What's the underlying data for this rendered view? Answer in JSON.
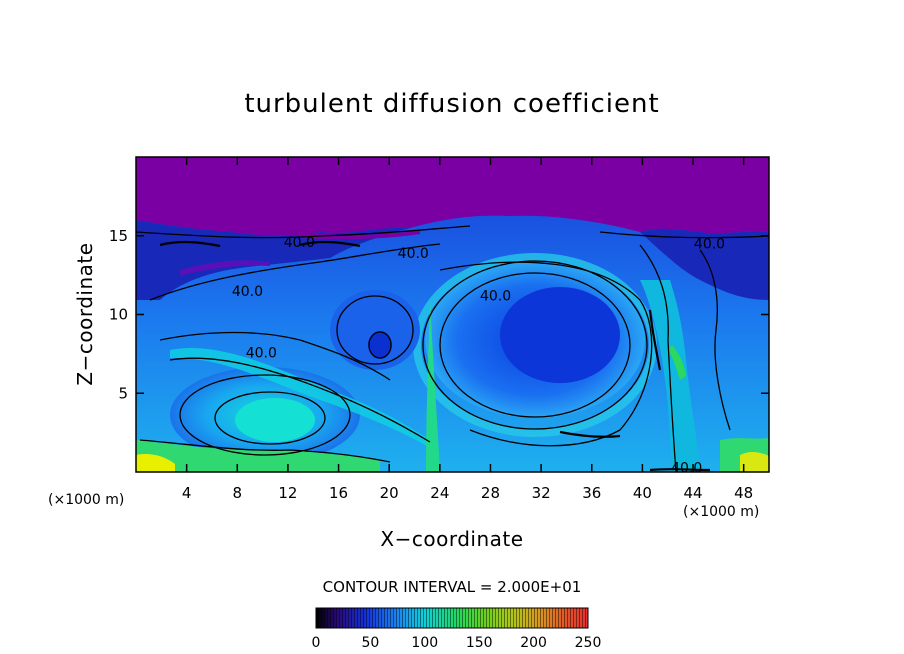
{
  "chart_data": {
    "type": "heatmap",
    "title": "turbulent diffusion coefficient",
    "xlabel": "X−coordinate",
    "ylabel": "Z−coordinate",
    "x_unit": "(×1000 m)",
    "z_unit": "(×1000 m)",
    "xlim": [
      0,
      50
    ],
    "ylim": [
      0,
      20
    ],
    "x_ticks": [
      4,
      8,
      12,
      16,
      20,
      24,
      28,
      32,
      36,
      40,
      44,
      48
    ],
    "y_ticks": [
      5,
      10,
      15
    ],
    "contour_interval_text": "CONTOUR INTERVAL = 2.000E+01",
    "contour_labels": [
      {
        "text": "40.0",
        "x": 12.9,
        "z": 14.6
      },
      {
        "text": "40.0",
        "x": 21.9,
        "z": 13.9
      },
      {
        "text": "40.0",
        "x": 8.8,
        "z": 11.5
      },
      {
        "text": "40.0",
        "x": 28.4,
        "z": 11.2
      },
      {
        "text": "40.0",
        "x": 9.9,
        "z": 7.6
      },
      {
        "text": "40.0",
        "x": 45.3,
        "z": 14.5
      },
      {
        "text": "40.0",
        "x": 43.5,
        "z": 0.3
      }
    ],
    "colorbar": {
      "range": [
        0,
        250
      ],
      "ticks": [
        "0",
        "50",
        "100",
        "150",
        "200",
        "250"
      ]
    },
    "colors": {
      "upper_layer": "#7a00a4",
      "vortex_core": "#0a46e6",
      "mid_band": "#1b8cf0",
      "high_band": "#10d6d6",
      "surface_hot": "#3cd84a",
      "extreme": "#e8f000"
    }
  }
}
